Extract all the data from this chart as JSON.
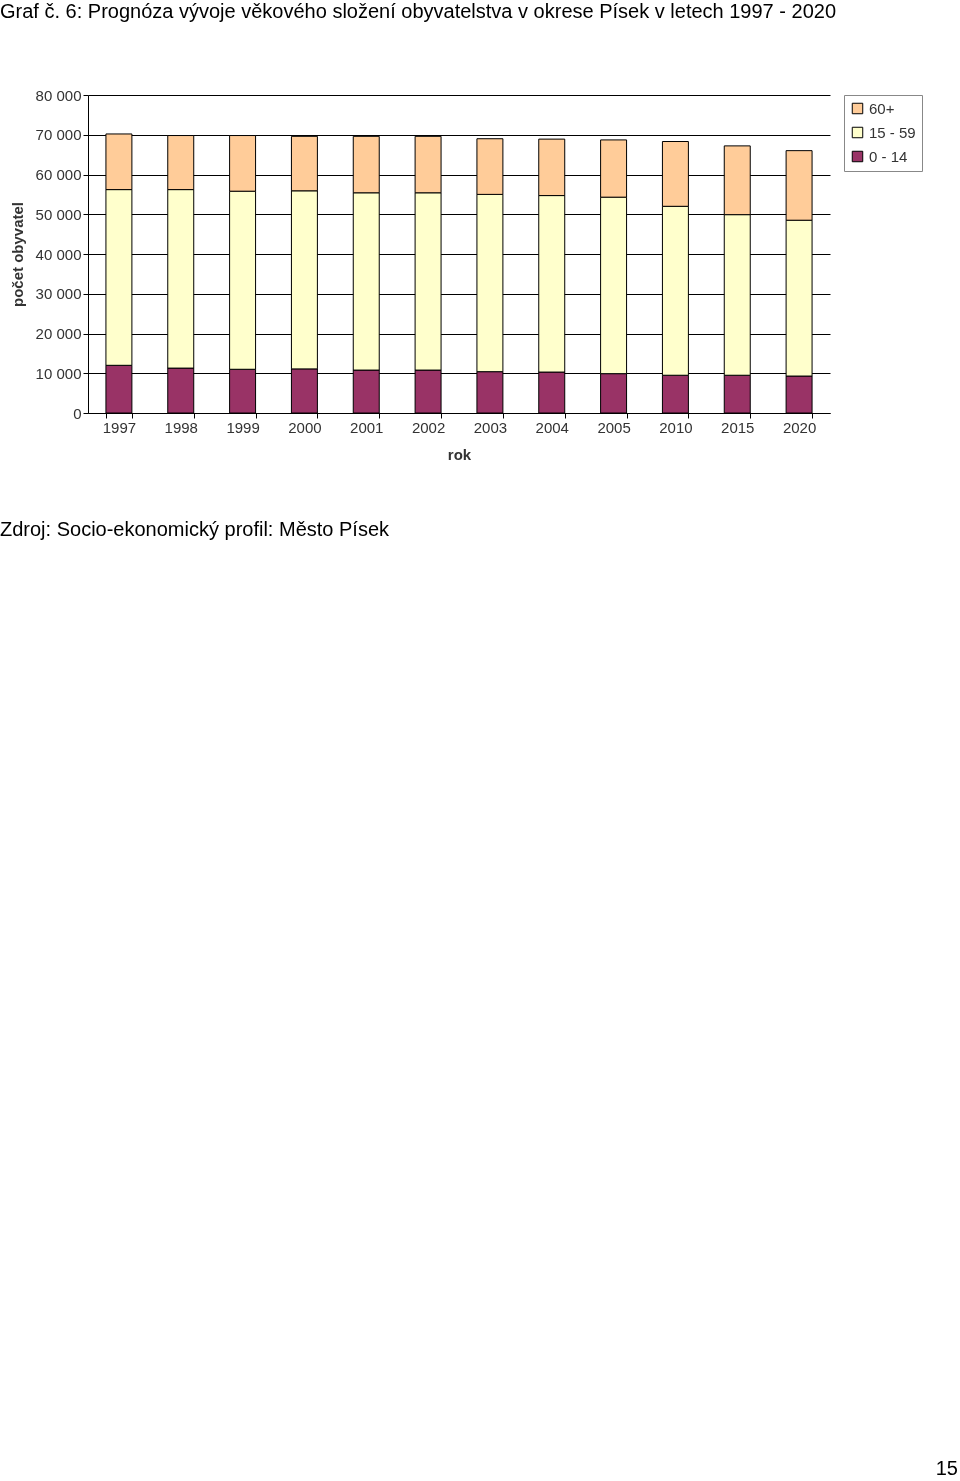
{
  "chart_data": {
    "type": "bar",
    "title": "Graf č. 6: Prognóza vývoje věkového složení obyvatelstva v okrese Písek v letech 1997 - 2020",
    "xlabel": "rok",
    "ylabel": "počet obyvatel",
    "categories": [
      "1997",
      "1998",
      "1999",
      "2000",
      "2001",
      "2002",
      "2003",
      "2004",
      "2005",
      "2010",
      "2015",
      "2020"
    ],
    "stacked": true,
    "series": [
      {
        "name": "0 - 14",
        "color": "#993366",
        "values": [
          12000,
          11300,
          11000,
          11100,
          10800,
          10800,
          10400,
          10300,
          9900,
          9500,
          9500,
          9300
        ]
      },
      {
        "name": "15 - 59",
        "color": "#ffffcc",
        "values": [
          44200,
          44900,
          44800,
          44800,
          44600,
          44600,
          44600,
          44400,
          44400,
          42500,
          40400,
          39200
        ]
      },
      {
        "name": "60+",
        "color": "#ffcc99",
        "values": [
          14000,
          13600,
          14000,
          13700,
          14200,
          14200,
          14000,
          14200,
          14400,
          16300,
          17300,
          17500
        ]
      }
    ],
    "ylim": [
      0,
      80000
    ],
    "yticks": [
      0,
      {
        "value": 10000,
        "label": "10 000"
      },
      {
        "value": 20000,
        "label": "20 000"
      },
      {
        "value": 30000,
        "label": "30 000"
      },
      {
        "value": 40000,
        "label": "40 000"
      },
      {
        "value": 50000,
        "label": "50 000"
      },
      {
        "value": 60000,
        "label": "60 000"
      },
      {
        "value": 70000,
        "label": "70 000"
      },
      {
        "value": 80000,
        "label": "80 000"
      }
    ],
    "grid": "y",
    "legend": "right",
    "annotations": [
      "Zdroj: Socio-ekonomický profil: Město Písek",
      "15"
    ]
  }
}
